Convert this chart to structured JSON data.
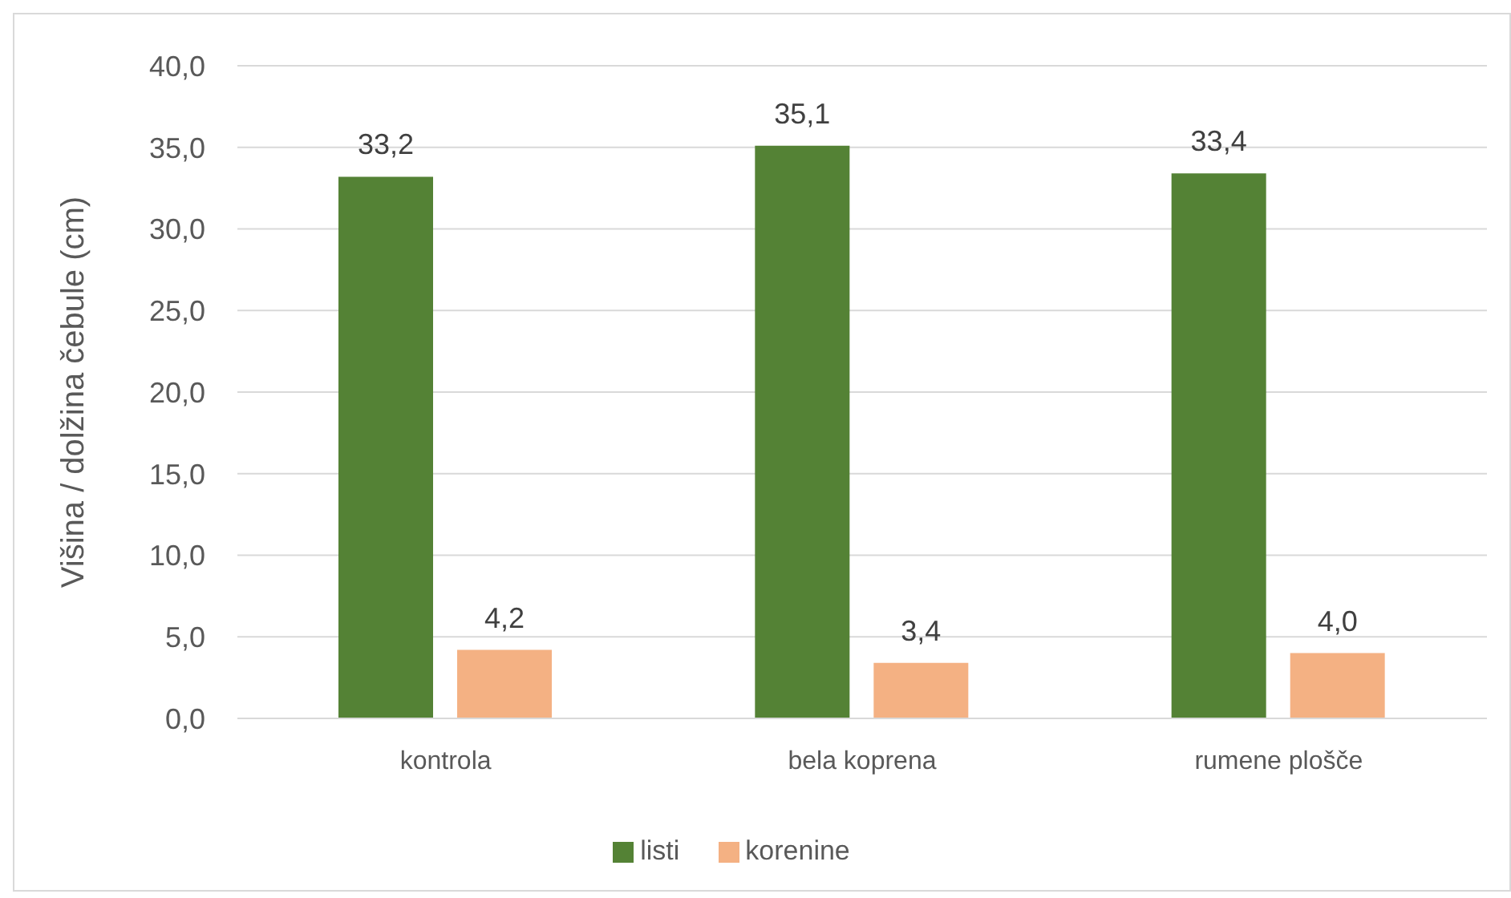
{
  "chart_data": {
    "type": "bar",
    "ylabel": "Višina / dolžina čebule (cm)",
    "categories": [
      "kontrola",
      "bela koprena",
      "rumene plošče"
    ],
    "series": [
      {
        "name": "listi",
        "color": "#548235",
        "values": [
          33.2,
          35.1,
          33.4
        ],
        "value_labels": [
          "33,2",
          "35,1",
          "33,4"
        ]
      },
      {
        "name": "korenine",
        "color": "#f4b183",
        "values": [
          4.2,
          3.4,
          4.0
        ],
        "value_labels": [
          "4,2",
          "3,4",
          "4,0"
        ]
      }
    ],
    "ylim": [
      0,
      40
    ],
    "yticks": [
      {
        "value": 0,
        "label": "0,0"
      },
      {
        "value": 5,
        "label": "5,0"
      },
      {
        "value": 10,
        "label": "10,0"
      },
      {
        "value": 15,
        "label": "15,0"
      },
      {
        "value": 20,
        "label": "20,0"
      },
      {
        "value": 25,
        "label": "25,0"
      },
      {
        "value": 30,
        "label": "30,0"
      },
      {
        "value": 35,
        "label": "35,0"
      },
      {
        "value": 40,
        "label": "40,0"
      }
    ],
    "grid": "y",
    "legend": "bottom"
  }
}
